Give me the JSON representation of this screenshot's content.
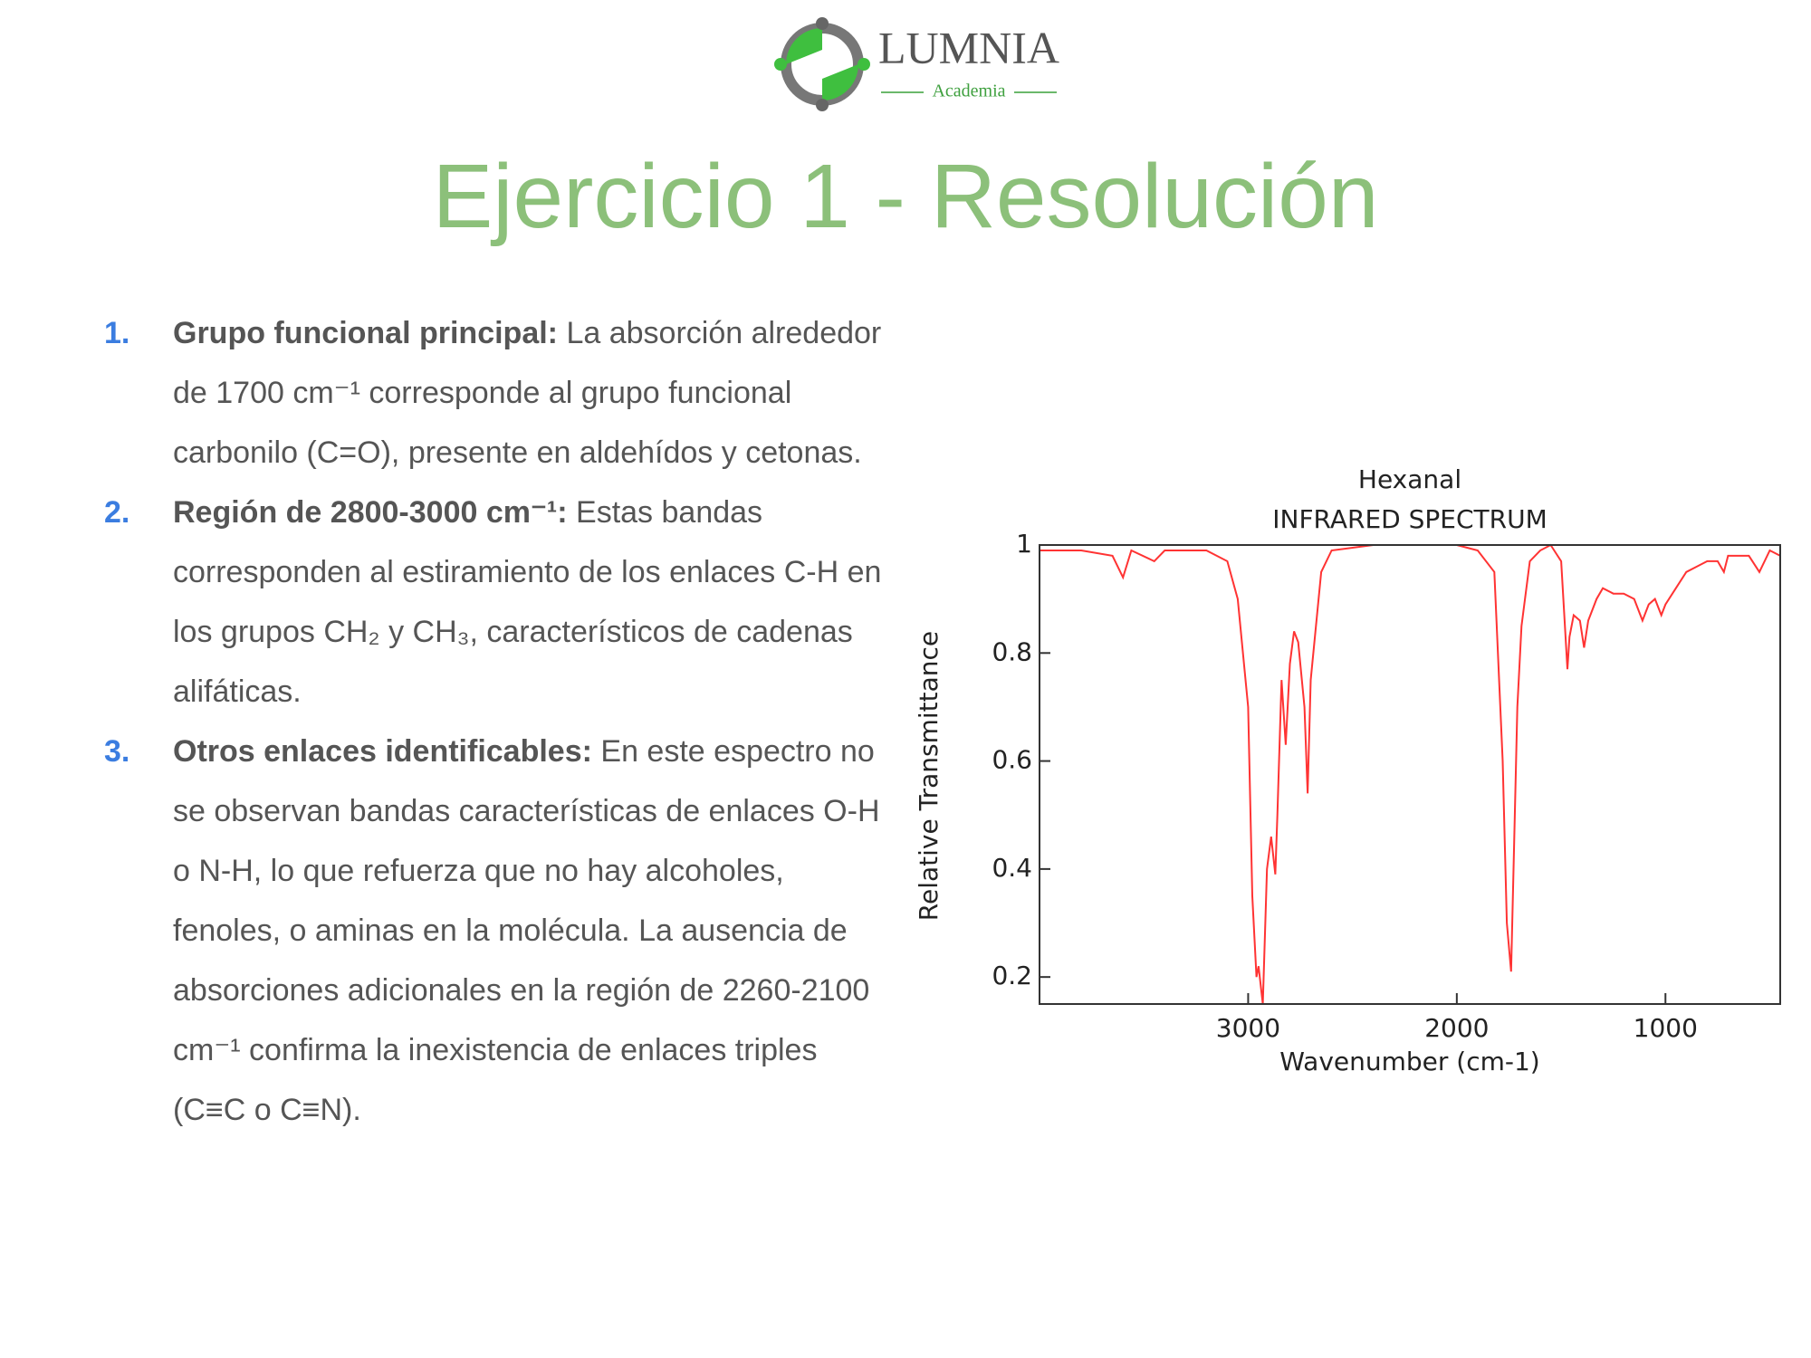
{
  "logo": {
    "name": "LUMNIA",
    "subtitle": "Academia"
  },
  "title": "Ejercicio 1 - Resolución",
  "list": [
    {
      "number": "1.",
      "heading": "Grupo funcional principal:",
      "text": "La absorción alrededor de 1700 cm⁻¹ corresponde al grupo funcional carbonilo (C=O), presente en aldehídos y cetonas."
    },
    {
      "number": "2.",
      "heading": "Región de 2800-3000 cm⁻¹:",
      "text": "Estas bandas corresponden al estiramiento de los enlaces C-H en los grupos CH₂ y CH₃, característicos de cadenas alifáticas."
    },
    {
      "number": "3.",
      "heading": "Otros enlaces identificables:",
      "text": "En este espectro no se observan bandas características de enlaces O-H o N-H, lo que refuerza que no hay alcoholes, fenoles, o aminas en la molécula. La ausencia de absorciones adicionales en la región de 2260-2100 cm⁻¹ confirma la inexistencia de enlaces triples (C≡C o C≡N)."
    }
  ],
  "chart_data": {
    "type": "line",
    "title": "Hexanal",
    "subtitle": "INFRARED SPECTRUM",
    "x_label": "Wavenumber (cm-1)",
    "y_label": "Relative Transmittance",
    "color": "#ff3333",
    "xlim": [
      4000,
      450
    ],
    "ylim": [
      0.15,
      1.0
    ],
    "xticks": [
      3000,
      2000,
      1000
    ],
    "yticks": [
      0.2,
      0.4,
      0.6,
      0.8,
      1
    ],
    "grid": false,
    "x": [
      4000,
      3800,
      3650,
      3600,
      3560,
      3450,
      3400,
      3200,
      3100,
      3050,
      3000,
      2980,
      2960,
      2950,
      2930,
      2910,
      2890,
      2870,
      2860,
      2840,
      2820,
      2800,
      2780,
      2760,
      2730,
      2715,
      2700,
      2650,
      2600,
      2400,
      2200,
      2000,
      1900,
      1820,
      1780,
      1760,
      1740,
      1725,
      1710,
      1690,
      1650,
      1600,
      1550,
      1500,
      1470,
      1460,
      1440,
      1410,
      1390,
      1370,
      1330,
      1300,
      1250,
      1200,
      1150,
      1110,
      1080,
      1050,
      1020,
      1000,
      950,
      900,
      850,
      800,
      750,
      720,
      700,
      600,
      550,
      500,
      450
    ],
    "values": [
      0.99,
      0.99,
      0.98,
      0.94,
      0.99,
      0.97,
      0.99,
      0.99,
      0.97,
      0.9,
      0.7,
      0.35,
      0.2,
      0.22,
      0.15,
      0.4,
      0.46,
      0.39,
      0.5,
      0.75,
      0.63,
      0.78,
      0.84,
      0.82,
      0.7,
      0.54,
      0.75,
      0.95,
      0.99,
      1.0,
      1.0,
      1.0,
      0.99,
      0.95,
      0.6,
      0.3,
      0.21,
      0.45,
      0.7,
      0.85,
      0.97,
      0.99,
      1.0,
      0.97,
      0.77,
      0.83,
      0.87,
      0.86,
      0.81,
      0.86,
      0.9,
      0.92,
      0.91,
      0.91,
      0.9,
      0.86,
      0.89,
      0.9,
      0.87,
      0.89,
      0.92,
      0.95,
      0.96,
      0.97,
      0.97,
      0.95,
      0.98,
      0.98,
      0.95,
      0.99,
      0.98
    ]
  }
}
